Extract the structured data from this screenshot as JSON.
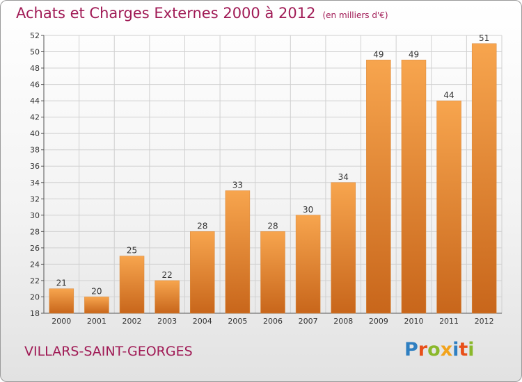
{
  "header": {
    "title": "Achats et Charges Externes 2000 à 2012",
    "unit": "(en milliers d'€)"
  },
  "footer": {
    "commune": "VILLARS-SAINT-GEORGES",
    "logo_text": "Proxiti",
    "logo_colors": [
      "#2f7fc1",
      "#e8501a",
      "#8ab82b",
      "#f2a31b",
      "#2f7fc1",
      "#e8501a",
      "#8ab82b"
    ]
  },
  "colors": {
    "title": "#a01a55",
    "bar_light": "#f7a54e",
    "bar_dark": "#c8661b",
    "grid": "#d0d0d0"
  },
  "chart_data": {
    "type": "bar",
    "title": "Achats et Charges Externes 2000 à 2012",
    "subtitle": "(en milliers d'€)",
    "xlabel": "",
    "ylabel": "",
    "categories": [
      "2000",
      "2001",
      "2002",
      "2003",
      "2004",
      "2005",
      "2006",
      "2007",
      "2008",
      "2009",
      "2010",
      "2011",
      "2012"
    ],
    "values": [
      21,
      20,
      25,
      22,
      28,
      33,
      28,
      30,
      34,
      49,
      49,
      44,
      51
    ],
    "value_labels": [
      "21",
      "20",
      "25",
      "22",
      "28",
      "33",
      "28",
      "30",
      "34",
      "49",
      "49",
      "44",
      "51"
    ],
    "ylim": [
      18,
      52
    ],
    "yticks": [
      18,
      20,
      22,
      24,
      26,
      28,
      30,
      32,
      34,
      36,
      38,
      40,
      42,
      44,
      46,
      48,
      50,
      52
    ],
    "ytick_labels": [
      "18",
      "20",
      "22",
      "24",
      "26",
      "28",
      "30",
      "32",
      "34",
      "36",
      "38",
      "40",
      "42",
      "44",
      "46",
      "48",
      "50",
      "52"
    ],
    "grid": true,
    "legend": "none"
  }
}
